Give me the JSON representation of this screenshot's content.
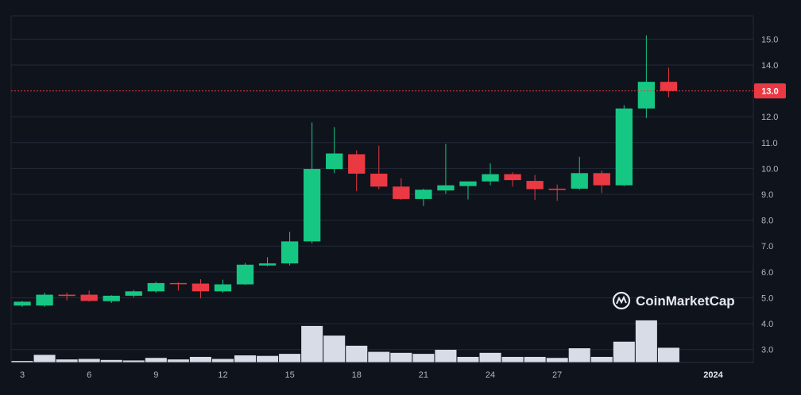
{
  "chart_data": {
    "type": "candlestick",
    "title": "",
    "x_tick_labels": [
      "3",
      "6",
      "9",
      "12",
      "15",
      "18",
      "21",
      "24",
      "27",
      "2024"
    ],
    "y_tick_labels": [
      "3.0",
      "4.0",
      "5.0",
      "6.0",
      "7.0",
      "8.0",
      "9.0",
      "10.0",
      "11.0",
      "12.0",
      "13.0",
      "14.0",
      "15.0"
    ],
    "ylim": [
      2.5,
      15.9
    ],
    "x_range": [
      2.5,
      35.8
    ],
    "current_price": 13.0,
    "current_price_label": "13.0",
    "colors": {
      "background": "#0f131c",
      "up": "#16c784",
      "down": "#ea3943",
      "volume": "#d8dce6",
      "grid": "#232a38",
      "text": "#b0b6c3",
      "price_line": "#ea3943"
    },
    "candles": [
      {
        "x": 3,
        "open": 4.7,
        "high": 4.88,
        "low": 4.65,
        "close": 4.85
      },
      {
        "x": 4,
        "open": 4.7,
        "high": 5.2,
        "low": 4.65,
        "close": 5.12
      },
      {
        "x": 5,
        "open": 5.12,
        "high": 5.2,
        "low": 4.9,
        "close": 5.07
      },
      {
        "x": 6,
        "open": 5.12,
        "high": 5.28,
        "low": 4.85,
        "close": 4.88
      },
      {
        "x": 7,
        "open": 4.87,
        "high": 5.1,
        "low": 4.8,
        "close": 5.08
      },
      {
        "x": 8,
        "open": 5.08,
        "high": 5.3,
        "low": 5.02,
        "close": 5.25
      },
      {
        "x": 9,
        "open": 5.25,
        "high": 5.62,
        "low": 5.2,
        "close": 5.57
      },
      {
        "x": 10,
        "open": 5.57,
        "high": 5.6,
        "low": 5.28,
        "close": 5.55
      },
      {
        "x": 11,
        "open": 5.55,
        "high": 5.72,
        "low": 4.98,
        "close": 5.25
      },
      {
        "x": 12,
        "open": 5.25,
        "high": 5.7,
        "low": 5.2,
        "close": 5.52
      },
      {
        "x": 13,
        "open": 5.52,
        "high": 6.35,
        "low": 5.5,
        "close": 6.28
      },
      {
        "x": 14,
        "open": 6.25,
        "high": 6.57,
        "low": 6.22,
        "close": 6.33
      },
      {
        "x": 15,
        "open": 6.33,
        "high": 7.55,
        "low": 6.25,
        "close": 7.18
      },
      {
        "x": 16,
        "open": 7.18,
        "high": 11.78,
        "low": 7.1,
        "close": 9.98
      },
      {
        "x": 17,
        "open": 9.98,
        "high": 11.6,
        "low": 9.82,
        "close": 10.58
      },
      {
        "x": 18,
        "open": 10.55,
        "high": 10.7,
        "low": 9.12,
        "close": 9.8
      },
      {
        "x": 19,
        "open": 9.8,
        "high": 10.88,
        "low": 9.2,
        "close": 9.3
      },
      {
        "x": 20,
        "open": 9.3,
        "high": 9.62,
        "low": 8.78,
        "close": 8.82
      },
      {
        "x": 21,
        "open": 8.82,
        "high": 9.22,
        "low": 8.55,
        "close": 9.18
      },
      {
        "x": 22,
        "open": 9.15,
        "high": 10.95,
        "low": 9.02,
        "close": 9.35
      },
      {
        "x": 23,
        "open": 9.32,
        "high": 9.5,
        "low": 8.8,
        "close": 9.5
      },
      {
        "x": 24,
        "open": 9.5,
        "high": 10.2,
        "low": 9.35,
        "close": 9.78
      },
      {
        "x": 25,
        "open": 9.78,
        "high": 9.85,
        "low": 9.3,
        "close": 9.55
      },
      {
        "x": 26,
        "open": 9.52,
        "high": 9.75,
        "low": 8.78,
        "close": 9.2
      },
      {
        "x": 27,
        "open": 9.22,
        "high": 9.38,
        "low": 8.75,
        "close": 9.17
      },
      {
        "x": 28,
        "open": 9.22,
        "high": 10.45,
        "low": 9.18,
        "close": 9.82
      },
      {
        "x": 29,
        "open": 9.82,
        "high": 9.92,
        "low": 9.05,
        "close": 9.35
      },
      {
        "x": 30,
        "open": 9.35,
        "high": 12.45,
        "low": 9.32,
        "close": 12.32
      },
      {
        "x": 31,
        "open": 12.32,
        "high": 15.15,
        "low": 11.95,
        "close": 13.35
      },
      {
        "x": 32,
        "open": 13.35,
        "high": 13.9,
        "low": 12.75,
        "close": 13.0
      }
    ],
    "volume_max": 1.0,
    "volume": [
      0.03,
      0.15,
      0.06,
      0.07,
      0.05,
      0.04,
      0.09,
      0.06,
      0.11,
      0.07,
      0.14,
      0.13,
      0.17,
      0.72,
      0.53,
      0.33,
      0.21,
      0.19,
      0.17,
      0.25,
      0.11,
      0.19,
      0.11,
      0.11,
      0.09,
      0.28,
      0.11,
      0.41,
      0.83,
      0.29
    ],
    "watermark": "CoinMarketCap"
  }
}
